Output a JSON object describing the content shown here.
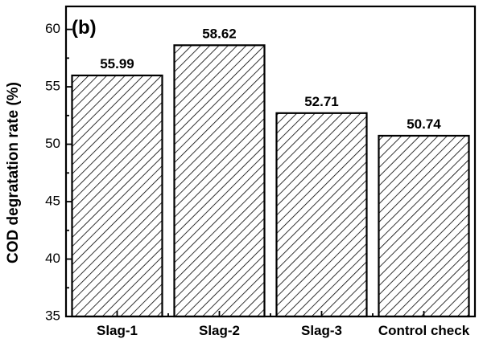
{
  "chart_data": {
    "type": "bar",
    "panel_label": "(b)",
    "title": "",
    "xlabel": "",
    "ylabel": "COD degratation rate (%)",
    "categories": [
      "Slag-1",
      "Slag-2",
      "Slag-3",
      "Control check"
    ],
    "values": [
      55.99,
      58.62,
      52.71,
      50.74
    ],
    "data_labels": [
      "55.99",
      "58.62",
      "52.71",
      "50.74"
    ],
    "ylim": [
      35,
      62
    ],
    "yticks": [
      35,
      40,
      45,
      50,
      55,
      60
    ],
    "ytick_labels": [
      "35",
      "40",
      "45",
      "50",
      "55",
      "60"
    ],
    "bar_fill": "diagonal-hatch",
    "bar_color": "#000000",
    "grid": false,
    "legend": "none"
  }
}
